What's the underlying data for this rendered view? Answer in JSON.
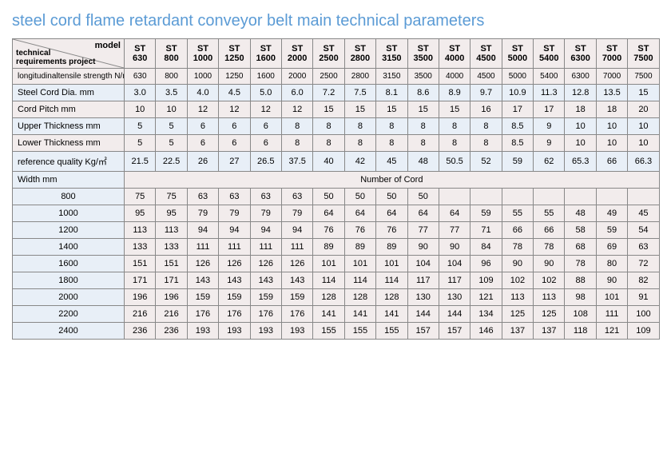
{
  "title": "steel cord flame retardant conveyor belt main technical parameters",
  "header": {
    "diag_top": "model",
    "diag_bottom": "technical\nrequirements project"
  },
  "models": [
    "ST 630",
    "ST 800",
    "ST 1000",
    "ST 1250",
    "ST 1600",
    "ST 2000",
    "ST 2500",
    "ST 2800",
    "ST 3150",
    "ST 3500",
    "ST 4000",
    "ST 4500",
    "ST 5000",
    "ST 5400",
    "ST 6300",
    "ST 7000",
    "ST 7500"
  ],
  "spec_rows": [
    {
      "label": "longitudinaltensile strength  N/mm",
      "vals": [
        "630",
        "800",
        "1000",
        "1250",
        "1600",
        "2000",
        "2500",
        "2800",
        "3150",
        "3500",
        "4000",
        "4500",
        "5000",
        "5400",
        "6300",
        "7000",
        "7500"
      ],
      "cls": "row-pink",
      "label_align": "left",
      "font": "10px"
    },
    {
      "label": "Steel Cord Dia. mm",
      "vals": [
        "3.0",
        "3.5",
        "4.0",
        "4.5",
        "5.0",
        "6.0",
        "7.2",
        "7.5",
        "8.1",
        "8.6",
        "8.9",
        "9.7",
        "10.9",
        "11.3",
        "12.8",
        "13.5",
        "15"
      ],
      "cls": "row-blue",
      "label_align": "left"
    },
    {
      "label": "Cord Pitch mm",
      "vals": [
        "10",
        "10",
        "12",
        "12",
        "12",
        "12",
        "15",
        "15",
        "15",
        "15",
        "15",
        "16",
        "17",
        "17",
        "18",
        "18",
        "20"
      ],
      "cls": "row-pink",
      "label_align": "left"
    },
    {
      "label": "Upper Thickness mm",
      "vals": [
        "5",
        "5",
        "6",
        "6",
        "6",
        "8",
        "8",
        "8",
        "8",
        "8",
        "8",
        "8",
        "8.5",
        "9",
        "10",
        "10",
        "10"
      ],
      "cls": "row-blue",
      "label_align": "left"
    },
    {
      "label": "Lower Thickness mm",
      "vals": [
        "5",
        "5",
        "6",
        "6",
        "6",
        "8",
        "8",
        "8",
        "8",
        "8",
        "8",
        "8",
        "8.5",
        "9",
        "10",
        "10",
        "10"
      ],
      "cls": "row-pink",
      "label_align": "left"
    },
    {
      "label": "reference quality Kg/㎡",
      "vals": [
        "21.5",
        "22.5",
        "26",
        "27",
        "26.5",
        "37.5",
        "40",
        "42",
        "45",
        "48",
        "50.5",
        "52",
        "59",
        "62",
        "65.3",
        "66",
        "66.3"
      ],
      "cls": "row-blue",
      "label_align": "left"
    }
  ],
  "width_header": {
    "label": "Width mm",
    "span_label": "Number of Cord"
  },
  "width_rows": [
    {
      "w": "800",
      "vals": [
        "75",
        "75",
        "63",
        "63",
        "63",
        "63",
        "50",
        "50",
        "50",
        "50",
        "",
        "",
        "",
        "",
        "",
        "",
        ""
      ]
    },
    {
      "w": "1000",
      "vals": [
        "95",
        "95",
        "79",
        "79",
        "79",
        "79",
        "64",
        "64",
        "64",
        "64",
        "64",
        "59",
        "55",
        "55",
        "48",
        "49",
        "45"
      ]
    },
    {
      "w": "1200",
      "vals": [
        "113",
        "113",
        "94",
        "94",
        "94",
        "94",
        "76",
        "76",
        "76",
        "77",
        "77",
        "71",
        "66",
        "66",
        "58",
        "59",
        "54"
      ]
    },
    {
      "w": "1400",
      "vals": [
        "133",
        "133",
        "111",
        "111",
        "111",
        "111",
        "89",
        "89",
        "89",
        "90",
        "90",
        "84",
        "78",
        "78",
        "68",
        "69",
        "63"
      ]
    },
    {
      "w": "1600",
      "vals": [
        "151",
        "151",
        "126",
        "126",
        "126",
        "126",
        "101",
        "101",
        "101",
        "104",
        "104",
        "96",
        "90",
        "90",
        "78",
        "80",
        "72"
      ]
    },
    {
      "w": "1800",
      "vals": [
        "171",
        "171",
        "143",
        "143",
        "143",
        "143",
        "114",
        "114",
        "114",
        "117",
        "117",
        "109",
        "102",
        "102",
        "88",
        "90",
        "82"
      ]
    },
    {
      "w": "2000",
      "vals": [
        "196",
        "196",
        "159",
        "159",
        "159",
        "159",
        "128",
        "128",
        "128",
        "130",
        "130",
        "121",
        "113",
        "113",
        "98",
        "101",
        "91"
      ]
    },
    {
      "w": "2200",
      "vals": [
        "216",
        "216",
        "176",
        "176",
        "176",
        "176",
        "141",
        "141",
        "141",
        "144",
        "144",
        "134",
        "125",
        "125",
        "108",
        "111",
        "100"
      ]
    },
    {
      "w": "2400",
      "vals": [
        "236",
        "236",
        "193",
        "193",
        "193",
        "193",
        "155",
        "155",
        "155",
        "157",
        "157",
        "146",
        "137",
        "137",
        "118",
        "121",
        "109"
      ]
    }
  ],
  "colors": {
    "title": "#5b9bd5",
    "pink": "#f2ecec",
    "blue": "#e8eff7",
    "border": "#888"
  }
}
